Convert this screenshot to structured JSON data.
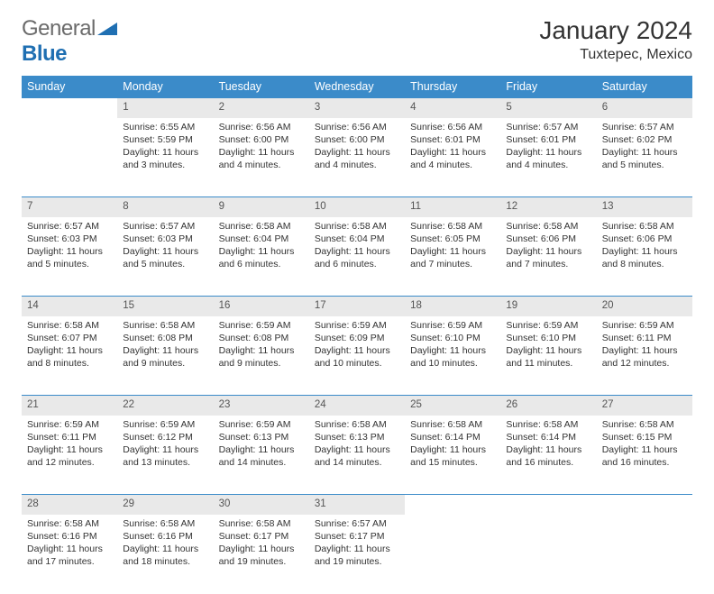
{
  "brand": {
    "part1": "General",
    "part2": "Blue"
  },
  "title": "January 2024",
  "location": "Tuxtepec, Mexico",
  "colors": {
    "header_bg": "#3b8bc9",
    "header_text": "#ffffff",
    "daynum_bg": "#e9e9e9",
    "rule": "#3b8bc9",
    "body_text": "#333333"
  },
  "dayHeaders": [
    "Sunday",
    "Monday",
    "Tuesday",
    "Wednesday",
    "Thursday",
    "Friday",
    "Saturday"
  ],
  "weeks": [
    [
      null,
      {
        "n": "1",
        "sr": "6:55 AM",
        "ss": "5:59 PM",
        "dl": "11 hours and 3 minutes."
      },
      {
        "n": "2",
        "sr": "6:56 AM",
        "ss": "6:00 PM",
        "dl": "11 hours and 4 minutes."
      },
      {
        "n": "3",
        "sr": "6:56 AM",
        "ss": "6:00 PM",
        "dl": "11 hours and 4 minutes."
      },
      {
        "n": "4",
        "sr": "6:56 AM",
        "ss": "6:01 PM",
        "dl": "11 hours and 4 minutes."
      },
      {
        "n": "5",
        "sr": "6:57 AM",
        "ss": "6:01 PM",
        "dl": "11 hours and 4 minutes."
      },
      {
        "n": "6",
        "sr": "6:57 AM",
        "ss": "6:02 PM",
        "dl": "11 hours and 5 minutes."
      }
    ],
    [
      {
        "n": "7",
        "sr": "6:57 AM",
        "ss": "6:03 PM",
        "dl": "11 hours and 5 minutes."
      },
      {
        "n": "8",
        "sr": "6:57 AM",
        "ss": "6:03 PM",
        "dl": "11 hours and 5 minutes."
      },
      {
        "n": "9",
        "sr": "6:58 AM",
        "ss": "6:04 PM",
        "dl": "11 hours and 6 minutes."
      },
      {
        "n": "10",
        "sr": "6:58 AM",
        "ss": "6:04 PM",
        "dl": "11 hours and 6 minutes."
      },
      {
        "n": "11",
        "sr": "6:58 AM",
        "ss": "6:05 PM",
        "dl": "11 hours and 7 minutes."
      },
      {
        "n": "12",
        "sr": "6:58 AM",
        "ss": "6:06 PM",
        "dl": "11 hours and 7 minutes."
      },
      {
        "n": "13",
        "sr": "6:58 AM",
        "ss": "6:06 PM",
        "dl": "11 hours and 8 minutes."
      }
    ],
    [
      {
        "n": "14",
        "sr": "6:58 AM",
        "ss": "6:07 PM",
        "dl": "11 hours and 8 minutes."
      },
      {
        "n": "15",
        "sr": "6:58 AM",
        "ss": "6:08 PM",
        "dl": "11 hours and 9 minutes."
      },
      {
        "n": "16",
        "sr": "6:59 AM",
        "ss": "6:08 PM",
        "dl": "11 hours and 9 minutes."
      },
      {
        "n": "17",
        "sr": "6:59 AM",
        "ss": "6:09 PM",
        "dl": "11 hours and 10 minutes."
      },
      {
        "n": "18",
        "sr": "6:59 AM",
        "ss": "6:10 PM",
        "dl": "11 hours and 10 minutes."
      },
      {
        "n": "19",
        "sr": "6:59 AM",
        "ss": "6:10 PM",
        "dl": "11 hours and 11 minutes."
      },
      {
        "n": "20",
        "sr": "6:59 AM",
        "ss": "6:11 PM",
        "dl": "11 hours and 12 minutes."
      }
    ],
    [
      {
        "n": "21",
        "sr": "6:59 AM",
        "ss": "6:11 PM",
        "dl": "11 hours and 12 minutes."
      },
      {
        "n": "22",
        "sr": "6:59 AM",
        "ss": "6:12 PM",
        "dl": "11 hours and 13 minutes."
      },
      {
        "n": "23",
        "sr": "6:59 AM",
        "ss": "6:13 PM",
        "dl": "11 hours and 14 minutes."
      },
      {
        "n": "24",
        "sr": "6:58 AM",
        "ss": "6:13 PM",
        "dl": "11 hours and 14 minutes."
      },
      {
        "n": "25",
        "sr": "6:58 AM",
        "ss": "6:14 PM",
        "dl": "11 hours and 15 minutes."
      },
      {
        "n": "26",
        "sr": "6:58 AM",
        "ss": "6:14 PM",
        "dl": "11 hours and 16 minutes."
      },
      {
        "n": "27",
        "sr": "6:58 AM",
        "ss": "6:15 PM",
        "dl": "11 hours and 16 minutes."
      }
    ],
    [
      {
        "n": "28",
        "sr": "6:58 AM",
        "ss": "6:16 PM",
        "dl": "11 hours and 17 minutes."
      },
      {
        "n": "29",
        "sr": "6:58 AM",
        "ss": "6:16 PM",
        "dl": "11 hours and 18 minutes."
      },
      {
        "n": "30",
        "sr": "6:58 AM",
        "ss": "6:17 PM",
        "dl": "11 hours and 19 minutes."
      },
      {
        "n": "31",
        "sr": "6:57 AM",
        "ss": "6:17 PM",
        "dl": "11 hours and 19 minutes."
      },
      null,
      null,
      null
    ]
  ],
  "labels": {
    "sunrise": "Sunrise:",
    "sunset": "Sunset:",
    "daylight": "Daylight:"
  }
}
